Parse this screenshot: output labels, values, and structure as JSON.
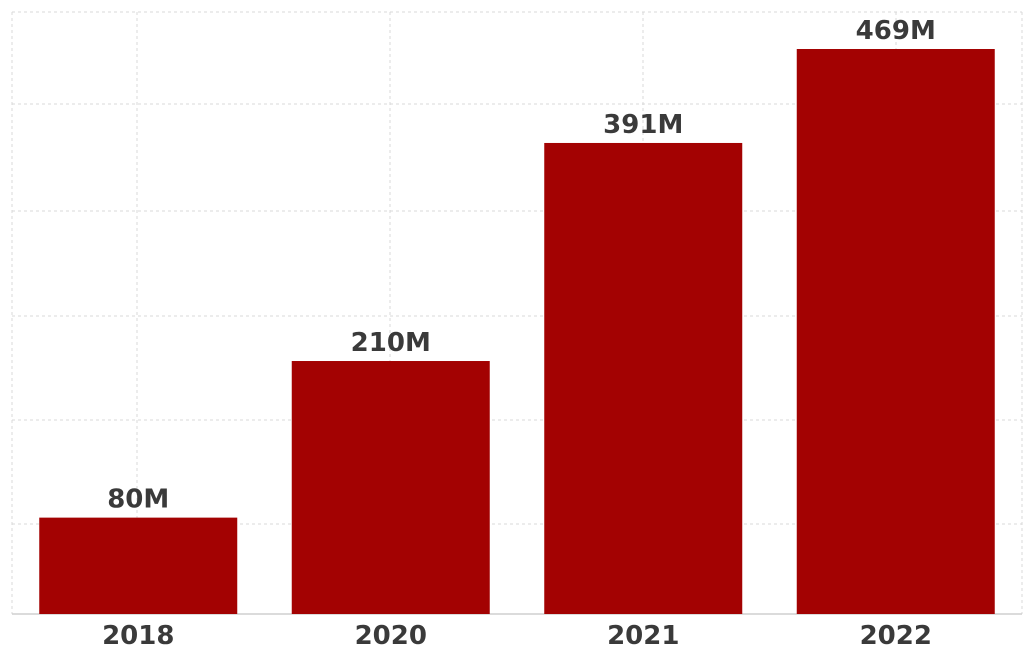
{
  "chart_data": {
    "type": "bar",
    "categories": [
      "2018",
      "2020",
      "2021",
      "2022"
    ],
    "values": [
      80,
      210,
      391,
      469
    ],
    "data_labels": [
      "80M",
      "210M",
      "391M",
      "469M"
    ],
    "title": "",
    "xlabel": "",
    "ylabel": "",
    "ylim": [
      0,
      500
    ],
    "grid": true,
    "legend": "none",
    "colors": {
      "bar": "#a30202",
      "grid": "#d9d9d9",
      "text": "#3a3a3a",
      "axis": "#cfcfcf"
    }
  }
}
